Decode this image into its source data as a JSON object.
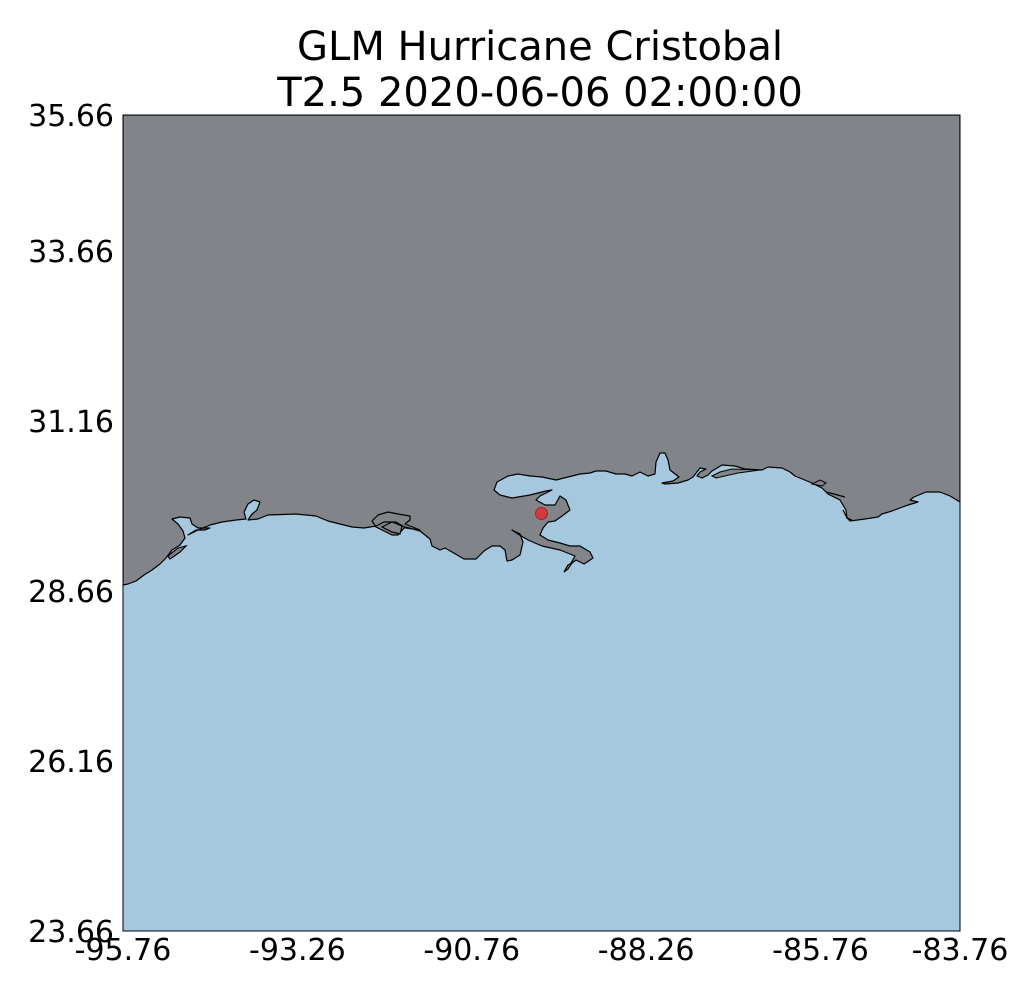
{
  "title": {
    "line1": "GLM Hurricane Cristobal",
    "line2": "T2.5 2020-06-06 02:00:00"
  },
  "map": {
    "x_ticks": [
      "-95.76",
      "-93.26",
      "-90.76",
      "-88.26",
      "-85.76",
      "-83.76"
    ],
    "y_ticks": [
      "35.66",
      "33.66",
      "31.16",
      "28.66",
      "26.16",
      "23.66"
    ],
    "lon_range": [
      -95.76,
      -83.76
    ],
    "lat_range": [
      23.66,
      35.66
    ],
    "land_color": "#818589",
    "water_color": "#a6c8df",
    "coast_color": "#000000",
    "marker": {
      "lon": -89.76,
      "lat": 29.8,
      "color": "#d93030"
    }
  }
}
